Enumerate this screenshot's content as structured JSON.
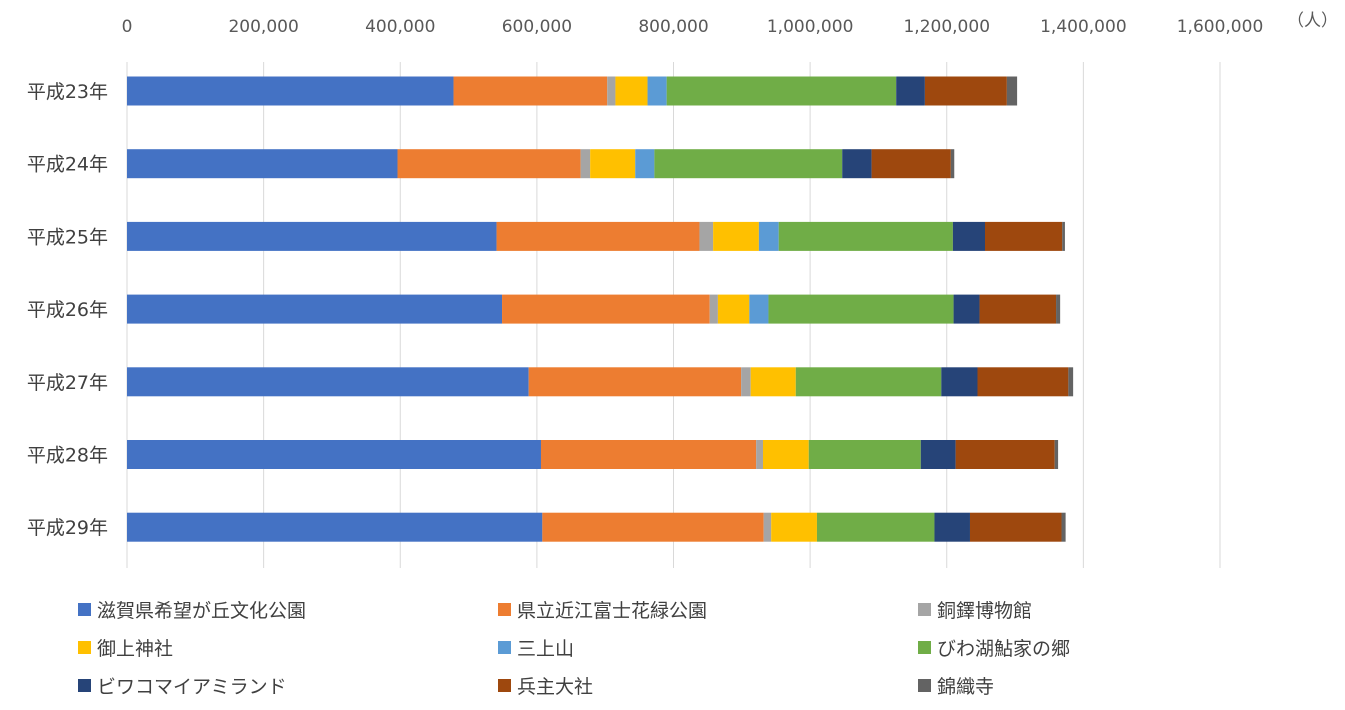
{
  "chart_data": {
    "type": "bar",
    "orientation": "horizontal",
    "stacked": true,
    "unit_label": "（人）",
    "xlim": [
      0,
      1600000
    ],
    "x_ticks": [
      "0",
      "200,000",
      "400,000",
      "600,000",
      "800,000",
      "1,000,000",
      "1,200,000",
      "1,400,000",
      "1,600,000"
    ],
    "grid": true,
    "legend_position": "bottom",
    "categories": [
      "平成23年",
      "平成24年",
      "平成25年",
      "平成26年",
      "平成27年",
      "平成28年",
      "平成29年"
    ],
    "series": [
      {
        "name": "滋賀県希望が丘文化公園",
        "color": "#4472C4",
        "values": [
          478000,
          396000,
          541000,
          549000,
          588000,
          606000,
          608000
        ]
      },
      {
        "name": "県立近江富士花緑公園",
        "color": "#ED7D31",
        "values": [
          225000,
          268000,
          297000,
          304000,
          311000,
          315000,
          324000
        ]
      },
      {
        "name": "銅鐸博物館",
        "color": "#A5A5A5",
        "values": [
          12000,
          14000,
          20000,
          12000,
          14000,
          10000,
          11000
        ]
      },
      {
        "name": "御上神社",
        "color": "#FFC000",
        "values": [
          47000,
          66000,
          67000,
          46000,
          66000,
          67000,
          67000
        ]
      },
      {
        "name": "三上山",
        "color": "#5B9BD5",
        "values": [
          28000,
          28000,
          29000,
          28000,
          0,
          0,
          0
        ]
      },
      {
        "name": "びわ湖鮎家の郷",
        "color": "#70AD47",
        "values": [
          336000,
          275000,
          255000,
          271000,
          213000,
          164000,
          172000
        ]
      },
      {
        "name": "ビワコマイアミランド",
        "color": "#264478",
        "values": [
          42000,
          43000,
          47000,
          38000,
          53000,
          51000,
          52000
        ]
      },
      {
        "name": "兵主大社",
        "color": "#9E480E",
        "values": [
          120000,
          116000,
          113000,
          112000,
          133000,
          145000,
          134000
        ]
      },
      {
        "name": "錦織寺",
        "color": "#636363",
        "values": [
          15000,
          5000,
          4000,
          6000,
          7000,
          5000,
          6000
        ]
      }
    ]
  }
}
